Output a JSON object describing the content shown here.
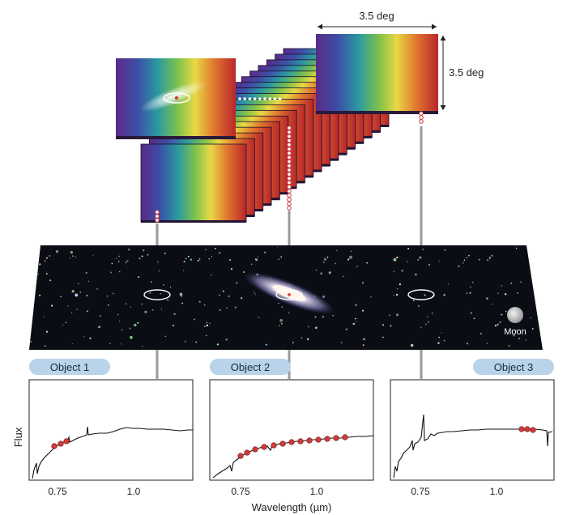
{
  "cube": {
    "width_label": "3.5 deg",
    "height_label": "3.5 deg"
  },
  "sky": {
    "moon_label": "Moon"
  },
  "panels": [
    {
      "title": "Object 1",
      "ticks": [
        "0.75",
        "1.0"
      ]
    },
    {
      "title": "Object 2",
      "ticks": [
        "0.75",
        "1.0"
      ]
    },
    {
      "title": "Object 3",
      "ticks": [
        "0.75",
        "1.0"
      ]
    }
  ],
  "axes": {
    "ylabel": "Flux",
    "xlabel": "Wavelength (µm)"
  },
  "colors": {
    "marker": "#d23b3b",
    "pill": "#b9d3ea",
    "connector": "#999999",
    "sky": "#0b0d14"
  }
}
